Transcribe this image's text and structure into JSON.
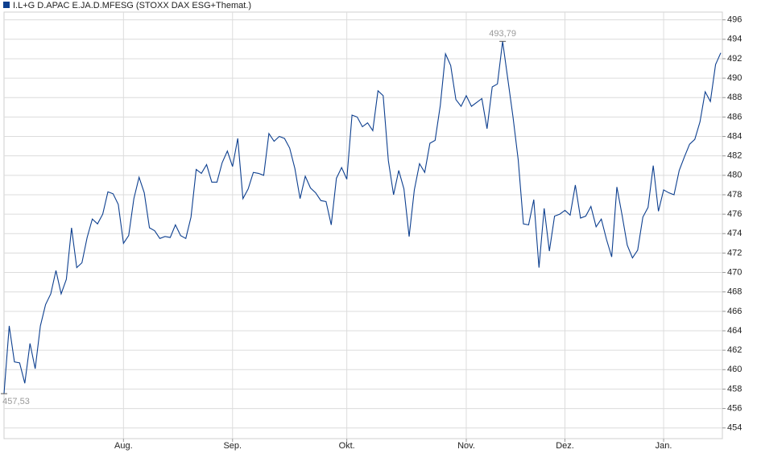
{
  "chart_data": {
    "type": "line",
    "categories": [
      null,
      null,
      null,
      null,
      null,
      null,
      null,
      null,
      null,
      null,
      null,
      null,
      null,
      null,
      null,
      null,
      null,
      null,
      null,
      null,
      null,
      null,
      null,
      "Aug.",
      null,
      null,
      null,
      null,
      null,
      null,
      null,
      null,
      null,
      null,
      null,
      null,
      null,
      null,
      null,
      null,
      null,
      null,
      null,
      null,
      "Sep.",
      null,
      null,
      null,
      null,
      null,
      null,
      null,
      null,
      null,
      null,
      null,
      null,
      null,
      null,
      null,
      null,
      null,
      null,
      null,
      null,
      null,
      "Okt.",
      null,
      null,
      null,
      null,
      null,
      null,
      null,
      null,
      null,
      null,
      null,
      null,
      null,
      null,
      null,
      null,
      null,
      null,
      null,
      null,
      null,
      null,
      "Nov.",
      null,
      null,
      null,
      null,
      null,
      null,
      null,
      null,
      null,
      null,
      null,
      null,
      null,
      null,
      null,
      null,
      null,
      null,
      "Dez.",
      null,
      null,
      null,
      null,
      null,
      null,
      null,
      null,
      null,
      null,
      null,
      null,
      null,
      null,
      null,
      null,
      null,
      null,
      "Jan.",
      null,
      null,
      null,
      null,
      null,
      null,
      null,
      null,
      null,
      null,
      null
    ],
    "series": [
      {
        "name": "I.L+G D.APAC E.JA.D.MFESG (STOXX DAX ESG+Themat.)",
        "color": "#0d3f8f",
        "values": [
          457.53,
          464.5,
          460.8,
          460.7,
          458.6,
          462.7,
          460.1,
          464.5,
          466.7,
          467.8,
          470.2,
          467.8,
          469.3,
          474.6,
          470.5,
          471.0,
          473.6,
          475.5,
          475.0,
          476.0,
          478.3,
          478.1,
          477.0,
          473.0,
          473.8,
          477.6,
          479.8,
          478.2,
          474.6,
          474.3,
          473.5,
          473.7,
          473.6,
          474.9,
          473.8,
          473.5,
          475.7,
          480.6,
          480.2,
          481.1,
          479.3,
          479.3,
          481.3,
          482.5,
          480.9,
          483.8,
          477.6,
          478.6,
          480.3,
          480.2,
          480.0,
          484.3,
          483.5,
          484.0,
          483.8,
          482.8,
          480.7,
          477.6,
          479.9,
          478.7,
          478.2,
          477.4,
          477.3,
          474.9,
          479.7,
          480.8,
          479.6,
          486.2,
          486.0,
          485.0,
          485.4,
          484.6,
          488.7,
          488.2,
          481.5,
          478.0,
          480.5,
          478.6,
          473.7,
          478.5,
          481.2,
          480.3,
          483.3,
          483.6,
          487.2,
          492.5,
          491.3,
          487.8,
          487.1,
          488.2,
          487.1,
          487.5,
          487.9,
          484.8,
          489.1,
          489.4,
          493.79,
          489.9,
          486.0,
          481.6,
          475.0,
          474.9,
          477.5,
          470.5,
          476.6,
          472.2,
          475.8,
          476.0,
          476.4,
          475.9,
          479.0,
          475.6,
          475.8,
          476.8,
          474.7,
          475.5,
          473.4,
          471.6,
          478.8,
          475.9,
          472.8,
          471.5,
          472.3,
          475.7,
          476.7,
          481.0,
          476.3,
          478.5,
          478.2,
          478.0,
          480.5,
          481.9,
          483.2,
          483.7,
          485.5,
          488.6,
          487.6,
          491.4,
          492.6
        ],
        "value_labels": [
          "457,53",
          null,
          null,
          null,
          null,
          null,
          null,
          null,
          null,
          null,
          null,
          null,
          null,
          null,
          null,
          null,
          null,
          null,
          null,
          null,
          null,
          null,
          null,
          null,
          null,
          null,
          null,
          null,
          null,
          null,
          null,
          null,
          null,
          null,
          null,
          null,
          null,
          null,
          null,
          null,
          null,
          null,
          null,
          null,
          null,
          null,
          null,
          null,
          null,
          null,
          null,
          null,
          null,
          null,
          null,
          null,
          null,
          null,
          null,
          null,
          null,
          null,
          null,
          null,
          null,
          null,
          null,
          null,
          null,
          null,
          null,
          null,
          null,
          null,
          null,
          null,
          null,
          null,
          null,
          null,
          null,
          null,
          null,
          null,
          null,
          null,
          null,
          null,
          null,
          null,
          null,
          null,
          null,
          null,
          null,
          null,
          "493,79",
          null,
          null,
          null,
          null,
          null,
          null,
          null,
          null,
          null,
          null,
          null,
          null,
          null,
          null,
          null,
          null,
          null,
          null,
          null,
          null,
          null,
          null,
          null,
          null,
          null,
          null,
          null,
          null,
          null,
          null,
          null,
          null,
          null,
          null,
          null,
          null,
          null,
          null,
          null,
          null,
          null,
          null
        ]
      }
    ],
    "ylim": [
      452.9,
      496.8
    ],
    "yticks": [
      454,
      456,
      458,
      460,
      462,
      464,
      466,
      468,
      470,
      472,
      474,
      476,
      478,
      480,
      482,
      484,
      486,
      488,
      490,
      492,
      494,
      496
    ],
    "grid": true,
    "legend": "top-left"
  }
}
